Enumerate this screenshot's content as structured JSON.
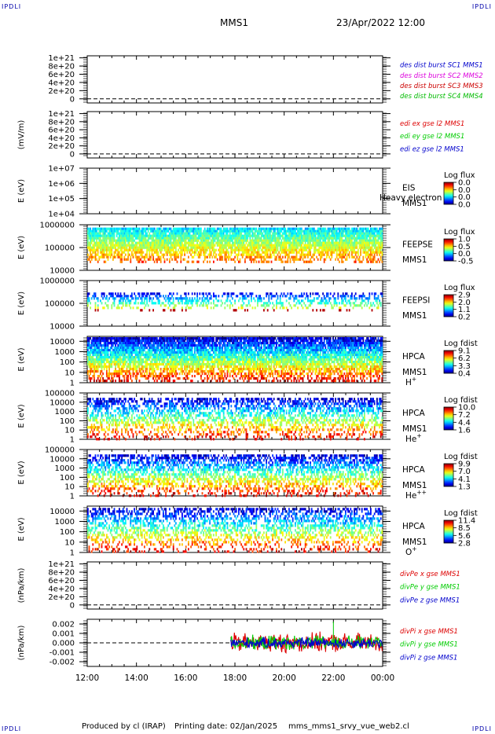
{
  "header": {
    "spacecraft": "MMS1",
    "datetime": "23/Apr/2022 12:00"
  },
  "corner_tag": "IPDLI",
  "footer": {
    "producer": "Produced by cl (IRAP)",
    "printed": "Printing date: 02/Jan/2025",
    "script": "mms_mms1_srvy_vue_web2.cl"
  },
  "colors": {
    "mms1": "#0000cc",
    "mms2": "#dd00dd",
    "mms3": "#cc0000",
    "mms4": "#00bb00",
    "red": "#dd0000",
    "green": "#00cc00",
    "blue": "#0000cc"
  },
  "chart_data": {
    "type": "spectrogram",
    "time_axis": {
      "start": "2022-04-23 12:00",
      "end": "2022-04-24 00:00",
      "tick_labels": [
        "12:00",
        "14:00",
        "16:00",
        "18:00",
        "20:00",
        "22:00",
        "00:00"
      ]
    },
    "panels": [
      {
        "kind": "line",
        "ylabel": "",
        "tick_labels": [
          "1e+21",
          "8e+20",
          "6e+20",
          "4e+20",
          "2e+20",
          "0"
        ],
        "series": [
          {
            "name": "des dist burst SC1 MMS1",
            "color": "#0000cc"
          },
          {
            "name": "des dist burst SC2 MMS2",
            "color": "#dd00dd"
          },
          {
            "name": "des dist burst SC3 MMS3",
            "color": "#cc0000"
          },
          {
            "name": "des dist burst SC4 MMS4",
            "color": "#00bb00"
          }
        ],
        "ylim": [
          -1e+20,
          1.05e+21
        ],
        "zero_line": true
      },
      {
        "kind": "line",
        "ylabel": "(mV/m)",
        "tick_labels": [
          "1e+21",
          "8e+20",
          "6e+20",
          "4e+20",
          "2e+20",
          "0"
        ],
        "series": [
          {
            "name": "edi ex gse l2 MMS1",
            "color": "#dd0000"
          },
          {
            "name": "edi ey gse l2 MMS1",
            "color": "#00cc00"
          },
          {
            "name": "edi ez gse l2 MMS1",
            "color": "#0000cc"
          }
        ],
        "ylim": [
          -1e+20,
          1.05e+21
        ],
        "zero_line": true
      },
      {
        "kind": "spectrogram",
        "ylabel": "E (eV)",
        "scale": "log",
        "tick_labels": [
          "1e+07",
          "1e+06",
          "1e+05",
          "1e+04"
        ],
        "ylim": [
          10000,
          10000000
        ],
        "name_lines": [
          "EIS",
          "MMS1"
        ],
        "overlay_text": "Heavy electron to",
        "colorbar": {
          "title": "Log flux",
          "values": [
            "0.0",
            "0.0",
            "0.0",
            "0.0"
          ]
        },
        "data_start": null,
        "density": 0
      },
      {
        "kind": "spectrogram",
        "ylabel": "E (eV)",
        "scale": "log",
        "tick_labels": [
          "1000000",
          "100000",
          "10000"
        ],
        "ylim": [
          10000,
          1000000
        ],
        "name_lines": [
          "FEEPSE",
          "MMS1"
        ],
        "colorbar": {
          "title": "Log flux",
          "values": [
            "1.0",
            "0.5",
            "0.0",
            "-0.5"
          ]
        },
        "data_start": "2022-04-23 12:00",
        "data_end": "2022-04-24 00:00",
        "band_top_energy": 750000,
        "band_bottom_energy": 25000,
        "density": 0.92
      },
      {
        "kind": "spectrogram",
        "ylabel": "E (eV)",
        "scale": "log",
        "tick_labels": [
          "1000000",
          "100000",
          "10000"
        ],
        "ylim": [
          10000,
          1000000
        ],
        "name_lines": [
          "FEEPSI",
          "MMS1"
        ],
        "colorbar": {
          "title": "Log flux",
          "values": [
            "2.9",
            "2.0",
            "1.1",
            "0.2"
          ]
        },
        "data_start": "2022-04-23 12:00",
        "data_end": "2022-04-24 00:00",
        "band_top_energy": 300000,
        "band_bottom_energy": 55000,
        "density": 0.45
      },
      {
        "kind": "spectrogram",
        "ylabel": "E (eV)",
        "scale": "log",
        "tick_labels": [
          "10000",
          "1000",
          "100",
          "10",
          "1"
        ],
        "ylim": [
          1,
          30000
        ],
        "name_lines": [
          "HPCA",
          "MMS1"
        ],
        "species": "H",
        "species_sup": "+",
        "colorbar": {
          "title": "Log fdist",
          "values": [
            "9.1",
            "6.2",
            "3.3",
            "0.4"
          ]
        },
        "data_start": "2022-04-23 12:00",
        "data_end": "2022-04-24 00:00",
        "band_top_energy": 30000,
        "band_bottom_energy": 1,
        "density": 0.9
      },
      {
        "kind": "spectrogram",
        "ylabel": "E (eV)",
        "scale": "log",
        "tick_labels": [
          "100000",
          "10000",
          "1000",
          "100",
          "10",
          "1"
        ],
        "ylim": [
          1,
          100000
        ],
        "name_lines": [
          "HPCA",
          "MMS1"
        ],
        "species": "He",
        "species_sup": "+",
        "colorbar": {
          "title": "Log fdist",
          "values": [
            "10.0",
            "7.2",
            "4.4",
            "1.6"
          ]
        },
        "data_start": "2022-04-23 12:00",
        "data_end": "2022-04-24 00:00",
        "band_top_energy": 30000,
        "band_bottom_energy": 1,
        "density": 0.55
      },
      {
        "kind": "spectrogram",
        "ylabel": "E (eV)",
        "scale": "log",
        "tick_labels": [
          "100000",
          "10000",
          "1000",
          "100",
          "10",
          "1"
        ],
        "ylim": [
          1,
          100000
        ],
        "name_lines": [
          "HPCA",
          "MMS1"
        ],
        "species": "He",
        "species_sup": "++",
        "colorbar": {
          "title": "Log fdist",
          "values": [
            "9.9",
            "7.0",
            "4.1",
            "1.3"
          ]
        },
        "data_start": "2022-04-23 12:00",
        "data_end": "2022-04-24 00:00",
        "band_top_energy": 30000,
        "band_bottom_energy": 1,
        "density": 0.6
      },
      {
        "kind": "spectrogram",
        "ylabel": "E (eV)",
        "scale": "log",
        "tick_labels": [
          "10000",
          "1000",
          "100",
          "10",
          "1"
        ],
        "ylim": [
          1,
          30000
        ],
        "name_lines": [
          "HPCA",
          "MMS1"
        ],
        "species": "O",
        "species_sup": "+",
        "colorbar": {
          "title": "Log fdist",
          "values": [
            "11.4",
            "8.5",
            "5.6",
            "2.8"
          ]
        },
        "data_start": "2022-04-23 12:00",
        "data_end": "2022-04-24 00:00",
        "band_top_energy": 20000,
        "band_bottom_energy": 1,
        "density": 0.5
      },
      {
        "kind": "line",
        "ylabel": "(nPa/km)",
        "tick_labels": [
          "1e+21",
          "8e+20",
          "6e+20",
          "4e+20",
          "2e+20",
          "0"
        ],
        "series": [
          {
            "name": "divPe x gse MMS1",
            "color": "#dd0000"
          },
          {
            "name": "divPe y gse MMS1",
            "color": "#00cc00"
          },
          {
            "name": "divPe z gse MMS1",
            "color": "#0000cc"
          }
        ],
        "ylim": [
          -1e+20,
          1.05e+21
        ],
        "zero_line": true
      },
      {
        "kind": "line",
        "ylabel": "(nPa/km)",
        "tick_labels": [
          "0.002",
          "0.001",
          "0.000",
          "-0.001",
          "-0.002"
        ],
        "series": [
          {
            "name": "divPi x gse MMS1",
            "color": "#dd0000",
            "amplitude": 0.0011
          },
          {
            "name": "divPi y gse MMS1",
            "color": "#00cc00",
            "amplitude": 0.0008
          },
          {
            "name": "divPi z gse MMS1",
            "color": "#0000cc",
            "amplitude": 0.0006
          }
        ],
        "ylim": [
          -0.0025,
          0.0025
        ],
        "zero_line": true,
        "data_start": "2022-04-23 17:50",
        "data_end": "2022-04-24 00:00"
      }
    ]
  }
}
